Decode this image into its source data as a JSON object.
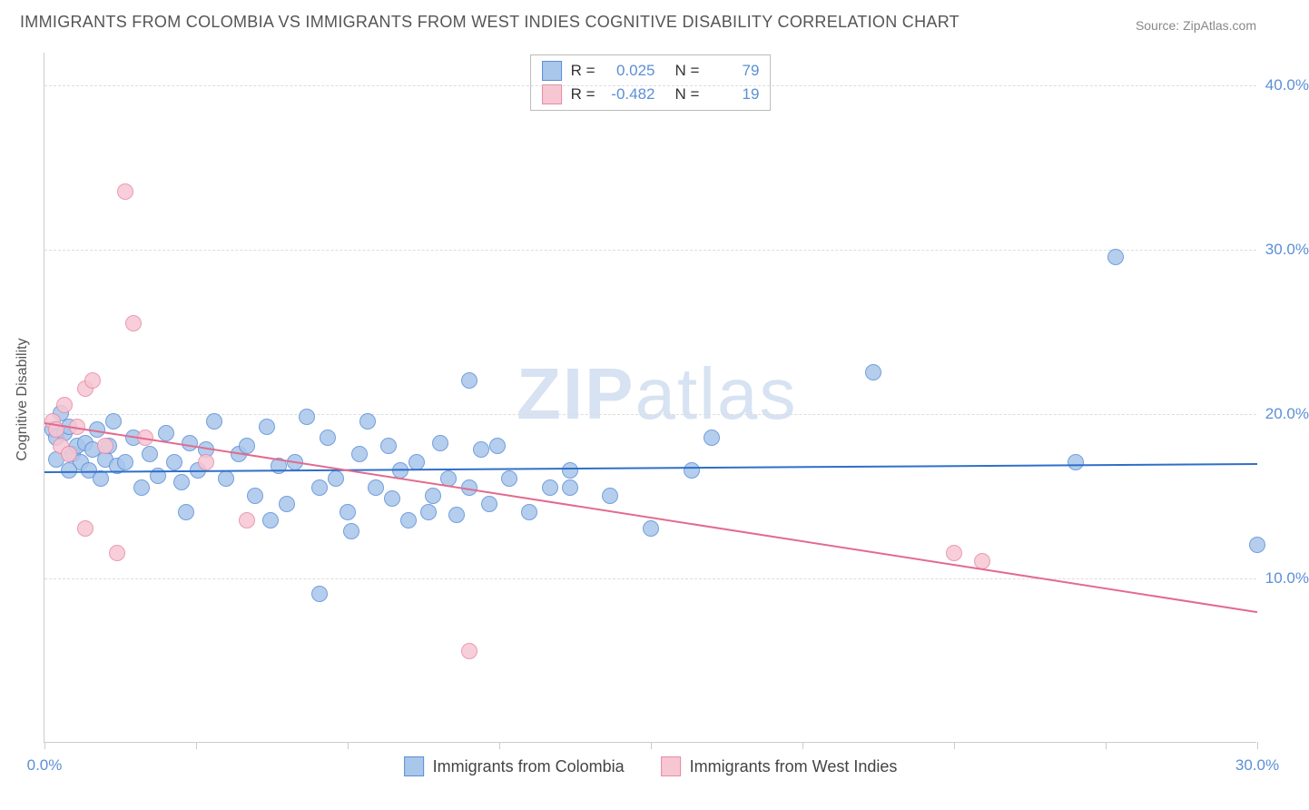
{
  "title": "IMMIGRANTS FROM COLOMBIA VS IMMIGRANTS FROM WEST INDIES COGNITIVE DISABILITY CORRELATION CHART",
  "source": "Source: ZipAtlas.com",
  "y_axis_label": "Cognitive Disability",
  "watermark_bold": "ZIP",
  "watermark_light": "atlas",
  "chart": {
    "type": "scatter",
    "background_color": "#ffffff",
    "grid_color": "#dddddd",
    "axis_color": "#cccccc",
    "tick_label_color": "#5b8fd6",
    "xlim": [
      0,
      30
    ],
    "ylim": [
      0,
      42
    ],
    "x_ticks": [
      0,
      3.75,
      7.5,
      11.25,
      15,
      18.75,
      22.5,
      26.25,
      30
    ],
    "x_tick_labels": {
      "0": "0.0%",
      "30": "30.0%"
    },
    "y_gridlines": [
      10,
      20,
      30,
      40
    ],
    "y_tick_labels": {
      "10": "10.0%",
      "20": "20.0%",
      "30": "30.0%",
      "40": "40.0%"
    },
    "marker_radius": 9,
    "marker_fill_opacity": 0.35,
    "marker_stroke_width": 1.2
  },
  "series": [
    {
      "id": "colombia",
      "label": "Immigrants from Colombia",
      "color_fill": "#a9c6eb",
      "color_stroke": "#5b8fd6",
      "line_color": "#2f6fc9",
      "r_value": "0.025",
      "n_value": "79",
      "trend": {
        "x1": 0,
        "y1": 16.5,
        "x2": 30,
        "y2": 17.0
      },
      "points": [
        [
          0.2,
          19.0
        ],
        [
          0.3,
          18.5
        ],
        [
          0.5,
          18.8
        ],
        [
          0.6,
          19.2
        ],
        [
          0.7,
          17.5
        ],
        [
          0.8,
          18.0
        ],
        [
          0.9,
          17.0
        ],
        [
          1.0,
          18.2
        ],
        [
          1.1,
          16.5
        ],
        [
          1.2,
          17.8
        ],
        [
          1.3,
          19.0
        ],
        [
          1.4,
          16.0
        ],
        [
          1.5,
          17.2
        ],
        [
          1.6,
          18.0
        ],
        [
          1.8,
          16.8
        ],
        [
          2.0,
          17.0
        ],
        [
          2.2,
          18.5
        ],
        [
          2.4,
          15.5
        ],
        [
          2.6,
          17.5
        ],
        [
          2.8,
          16.2
        ],
        [
          3.0,
          18.8
        ],
        [
          3.2,
          17.0
        ],
        [
          3.4,
          15.8
        ],
        [
          3.6,
          18.2
        ],
        [
          3.8,
          16.5
        ],
        [
          4.0,
          17.8
        ],
        [
          4.2,
          19.5
        ],
        [
          4.5,
          16.0
        ],
        [
          4.8,
          17.5
        ],
        [
          5.0,
          18.0
        ],
        [
          5.2,
          15.0
        ],
        [
          5.5,
          19.2
        ],
        [
          5.8,
          16.8
        ],
        [
          6.0,
          14.5
        ],
        [
          6.2,
          17.0
        ],
        [
          6.5,
          19.8
        ],
        [
          6.8,
          15.5
        ],
        [
          7.0,
          18.5
        ],
        [
          7.2,
          16.0
        ],
        [
          7.5,
          14.0
        ],
        [
          7.8,
          17.5
        ],
        [
          8.0,
          19.5
        ],
        [
          8.2,
          15.5
        ],
        [
          8.5,
          18.0
        ],
        [
          8.8,
          16.5
        ],
        [
          9.0,
          13.5
        ],
        [
          9.2,
          17.0
        ],
        [
          9.5,
          14.0
        ],
        [
          9.8,
          18.2
        ],
        [
          10.0,
          16.0
        ],
        [
          10.2,
          13.8
        ],
        [
          10.5,
          15.5
        ],
        [
          10.8,
          17.8
        ],
        [
          11.0,
          14.5
        ],
        [
          11.5,
          16.0
        ],
        [
          12.0,
          14.0
        ],
        [
          12.5,
          15.5
        ],
        [
          13.0,
          16.5
        ],
        [
          14.0,
          15.0
        ],
        [
          15.0,
          13.0
        ],
        [
          16.5,
          18.5
        ],
        [
          10.5,
          22.0
        ],
        [
          20.5,
          22.5
        ],
        [
          6.8,
          9.0
        ],
        [
          16.0,
          16.5
        ],
        [
          26.5,
          29.5
        ],
        [
          30.0,
          12.0
        ],
        [
          0.4,
          20.0
        ],
        [
          1.7,
          19.5
        ],
        [
          3.5,
          14.0
        ],
        [
          5.6,
          13.5
        ],
        [
          7.6,
          12.8
        ],
        [
          8.6,
          14.8
        ],
        [
          9.6,
          15.0
        ],
        [
          11.2,
          18.0
        ],
        [
          13.0,
          15.5
        ],
        [
          25.5,
          17.0
        ],
        [
          0.3,
          17.2
        ],
        [
          0.6,
          16.5
        ]
      ]
    },
    {
      "id": "west_indies",
      "label": "Immigrants from West Indies",
      "color_fill": "#f6c6d3",
      "color_stroke": "#e88aa5",
      "line_color": "#e26b8f",
      "r_value": "-0.482",
      "n_value": "19",
      "trend": {
        "x1": 0,
        "y1": 19.5,
        "x2": 30,
        "y2": 8.0
      },
      "points": [
        [
          0.2,
          19.5
        ],
        [
          0.3,
          19.0
        ],
        [
          0.4,
          18.0
        ],
        [
          0.5,
          20.5
        ],
        [
          0.6,
          17.5
        ],
        [
          0.8,
          19.2
        ],
        [
          1.0,
          21.5
        ],
        [
          1.2,
          22.0
        ],
        [
          1.5,
          18.0
        ],
        [
          2.0,
          33.5
        ],
        [
          2.2,
          25.5
        ],
        [
          2.5,
          18.5
        ],
        [
          1.0,
          13.0
        ],
        [
          1.8,
          11.5
        ],
        [
          4.0,
          17.0
        ],
        [
          5.0,
          13.5
        ],
        [
          10.5,
          5.5
        ],
        [
          22.5,
          11.5
        ],
        [
          23.2,
          11.0
        ]
      ]
    }
  ],
  "stats_box": {
    "rows": [
      {
        "swatch_idx": 0,
        "r_label": "R =",
        "n_label": "N ="
      },
      {
        "swatch_idx": 1,
        "r_label": "R =",
        "n_label": "N ="
      }
    ]
  }
}
